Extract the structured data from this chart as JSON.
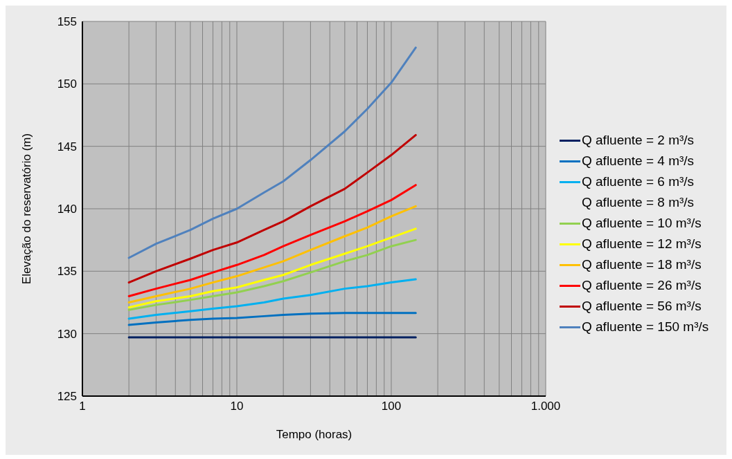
{
  "chart_data": {
    "type": "line",
    "xlabel": "Tempo (horas)",
    "ylabel": "Elevação do reservatório (m)",
    "x": [
      2,
      3,
      5,
      7,
      10,
      15,
      20,
      30,
      50,
      70,
      100,
      144
    ],
    "series": [
      {
        "name": "Q afluente = 2 m³/s",
        "color": "#002060",
        "values": [
          129.7,
          129.7,
          129.7,
          129.7,
          129.7,
          129.7,
          129.7,
          129.7,
          129.7,
          129.7,
          129.7,
          129.7
        ]
      },
      {
        "name": "Q afluente = 4 m³/s",
        "color": "#0070c0",
        "values": [
          130.7,
          130.9,
          131.1,
          131.2,
          131.25,
          131.4,
          131.5,
          131.6,
          131.65,
          131.65,
          131.65,
          131.65
        ]
      },
      {
        "name": "Q afluente = 6 m³/s",
        "color": "#00b0f0",
        "values": [
          131.2,
          131.5,
          131.8,
          132.0,
          132.2,
          132.5,
          132.8,
          133.1,
          133.6,
          133.8,
          134.1,
          134.35
        ]
      },
      {
        "name": "Q afluente = 8 m³/s",
        "values": [
          null,
          null,
          null,
          null,
          null,
          null,
          null,
          null,
          null,
          null,
          null,
          null
        ]
      },
      {
        "name": "Q afluente = 10 m³/s",
        "color": "#92d050",
        "values": [
          131.9,
          132.3,
          132.7,
          133.0,
          133.3,
          133.8,
          134.2,
          134.9,
          135.8,
          136.3,
          137.0,
          137.5
        ]
      },
      {
        "name": "Q afluente = 12 m³/s",
        "color": "#ffff00",
        "values": [
          132.1,
          132.6,
          133.0,
          133.4,
          133.7,
          134.3,
          134.7,
          135.5,
          136.4,
          137.0,
          137.7,
          138.4
        ]
      },
      {
        "name": "Q afluente = 18 m³/s",
        "color": "#ffc000",
        "values": [
          132.5,
          133.0,
          133.6,
          134.1,
          134.6,
          135.3,
          135.8,
          136.7,
          137.8,
          138.5,
          139.4,
          140.2
        ]
      },
      {
        "name": "Q afluente = 26 m³/s",
        "color": "#ff0000",
        "values": [
          133.0,
          133.6,
          134.3,
          134.9,
          135.5,
          136.3,
          137.0,
          137.9,
          139.0,
          139.8,
          140.7,
          141.9
        ]
      },
      {
        "name": "Q afluente = 56 m³/s",
        "color": "#c00000",
        "values": [
          134.1,
          135.0,
          136.0,
          136.7,
          137.3,
          138.3,
          139.0,
          140.2,
          141.6,
          142.9,
          144.3,
          145.9
        ]
      },
      {
        "name": "Q afluente = 150 m³/s",
        "color": "#4f81bd",
        "values": [
          136.07,
          137.2,
          138.3,
          139.2,
          140.0,
          141.3,
          142.2,
          143.9,
          146.2,
          148.0,
          150.1,
          152.9
        ]
      }
    ],
    "log": "x",
    "xlim": [
      1,
      1000
    ],
    "xticks": [
      1,
      {
        "value": 2,
        "label": null
      },
      {
        "value": 3,
        "label": null
      },
      {
        "value": 4,
        "label": null
      },
      {
        "value": 5,
        "label": null
      },
      {
        "value": 6,
        "label": null
      },
      {
        "value": 7,
        "label": null
      },
      {
        "value": 8,
        "label": null
      },
      {
        "value": 9,
        "label": null
      },
      10,
      {
        "value": 20,
        "label": null
      },
      {
        "value": 30,
        "label": null
      },
      {
        "value": 40,
        "label": null
      },
      {
        "value": 50,
        "label": null
      },
      {
        "value": 60,
        "label": null
      },
      {
        "value": 70,
        "label": null
      },
      {
        "value": 80,
        "label": null
      },
      {
        "value": 90,
        "label": null
      },
      100,
      {
        "value": 200,
        "label": null
      },
      {
        "value": 300,
        "label": null
      },
      {
        "value": 400,
        "label": null
      },
      {
        "value": 500,
        "label": null
      },
      {
        "value": 600,
        "label": null
      },
      {
        "value": 700,
        "label": null
      },
      {
        "value": 800,
        "label": null
      },
      {
        "value": 900,
        "label": null
      },
      {
        "value": 1000,
        "label": "1.000"
      }
    ],
    "ylim": [
      125,
      155
    ],
    "yticks": [
      125,
      130,
      135,
      140,
      145,
      150,
      155
    ],
    "grid": true,
    "legend": "right",
    "marker": "none",
    "line_style": "solid"
  }
}
